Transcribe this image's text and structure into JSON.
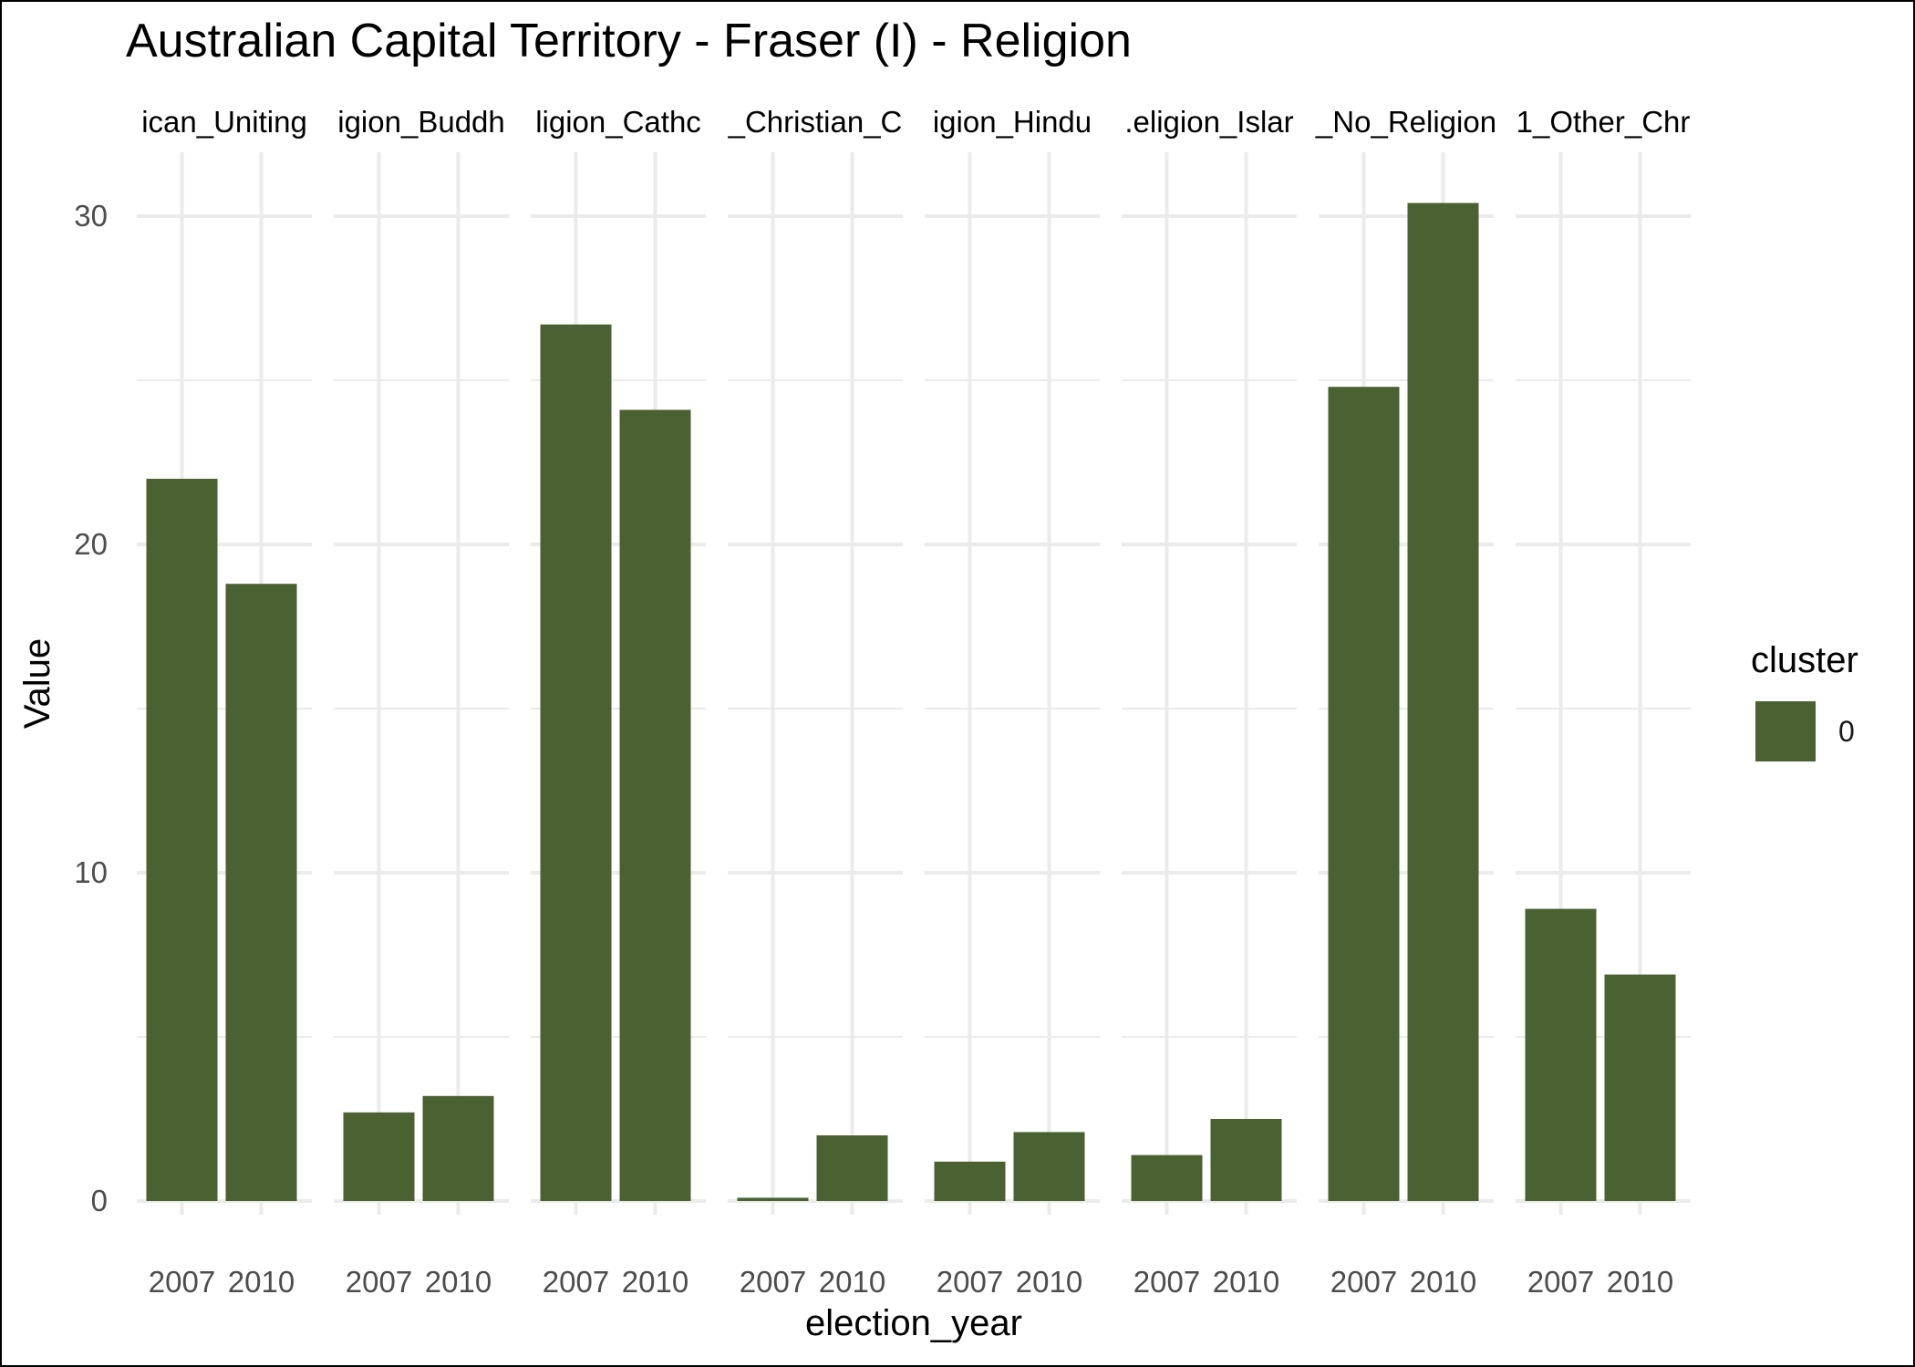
{
  "chart_data": {
    "type": "bar",
    "title": "Australian Capital Territory - Fraser (I) - Religion",
    "xlabel": "election_year",
    "ylabel": "Value",
    "ylim": [
      0,
      32
    ],
    "y_ticks": [
      0,
      10,
      20,
      30
    ],
    "grid": true,
    "categories": [
      "2007",
      "2010"
    ],
    "facets": [
      {
        "label": "ican_Uniting",
        "values": [
          22.0,
          18.8
        ]
      },
      {
        "label": "igion_Buddh",
        "values": [
          2.7,
          3.2
        ]
      },
      {
        "label": "ligion_Cathc",
        "values": [
          26.7,
          24.1
        ]
      },
      {
        "label": "_Christian_C",
        "values": [
          0.1,
          2.0
        ]
      },
      {
        "label": "igion_Hindu",
        "values": [
          1.2,
          2.1
        ]
      },
      {
        "label": ".eligion_Islar",
        "values": [
          1.4,
          2.5
        ]
      },
      {
        "label": "_No_Religion",
        "values": [
          24.8,
          30.4
        ]
      },
      {
        "label": "1_Other_Chr",
        "values": [
          8.9,
          6.9
        ]
      }
    ],
    "legend": {
      "title": "cluster",
      "position": "right",
      "entries": [
        {
          "label": "0",
          "color": "#4a6131"
        }
      ]
    }
  }
}
